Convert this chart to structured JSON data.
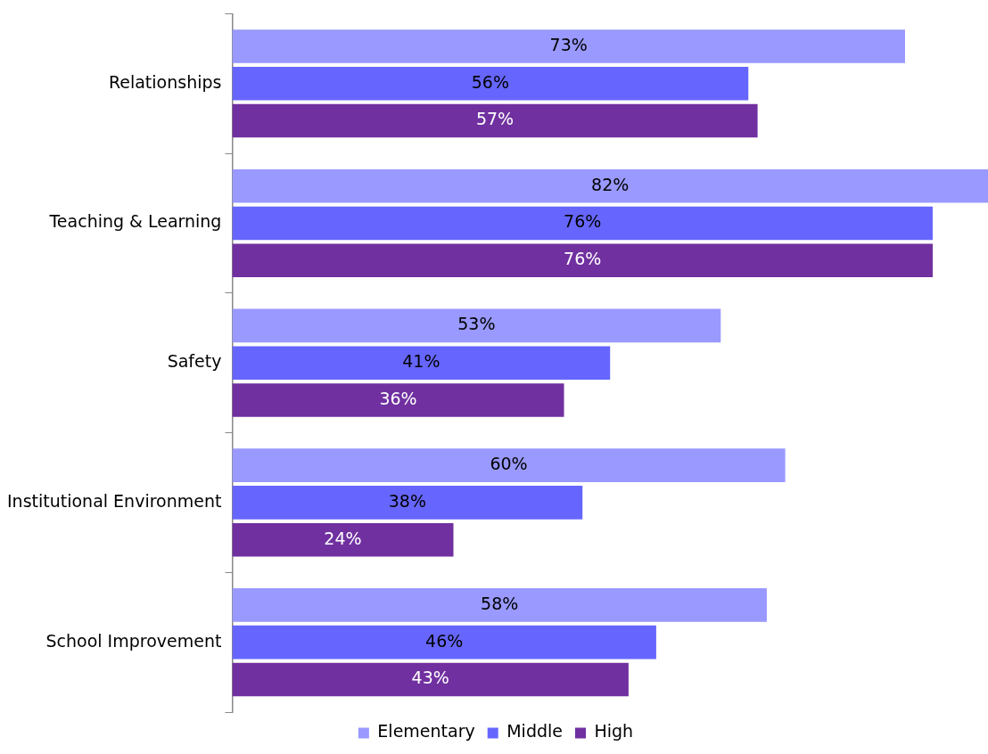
{
  "chart_data": {
    "type": "bar",
    "orientation": "horizontal",
    "legend": "bottom",
    "categories": [
      "Relationships",
      "Teaching & Learning",
      "Safety",
      "Institutional Environment",
      "School Improvement"
    ],
    "series": [
      {
        "name": "Elementary",
        "color": "#9999ff",
        "values": [
          73,
          82,
          53,
          60,
          58
        ],
        "value_labels": [
          "73%",
          "82%",
          "53%",
          "60%",
          "58%"
        ]
      },
      {
        "name": "Middle",
        "color": "#6666ff",
        "values": [
          56,
          76,
          41,
          38,
          46
        ],
        "value_labels": [
          "56%",
          "76%",
          "41%",
          "38%",
          "46%"
        ]
      },
      {
        "name": "High",
        "color": "#7030a0",
        "values": [
          57,
          76,
          36,
          24,
          43
        ],
        "value_labels": [
          "57%",
          "76%",
          "36%",
          "24%",
          "43%"
        ]
      }
    ]
  }
}
